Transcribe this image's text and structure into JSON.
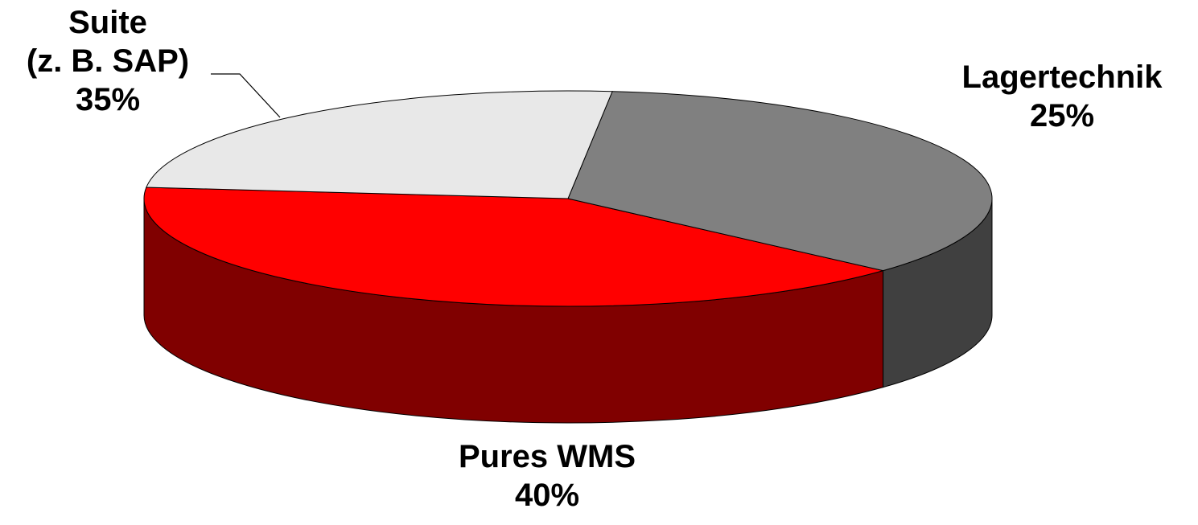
{
  "chart_data": {
    "type": "pie",
    "style": "3d",
    "title": "",
    "slices": [
      {
        "label_lines": [
          "Pures WMS"
        ],
        "value": 40,
        "value_label": "40%",
        "color": "#ff0000",
        "side_color": "#800000"
      },
      {
        "label_lines": [
          "Suite",
          "(z. B. SAP)"
        ],
        "value": 35,
        "value_label": "35%",
        "color": "#808080",
        "side_color": "#404040"
      },
      {
        "label_lines": [
          "Lagertechnik"
        ],
        "value": 25,
        "value_label": "25%",
        "color": "#e8e8e8",
        "side_color": "#7a7a7a"
      }
    ],
    "legend": "none",
    "labels": "outside"
  }
}
